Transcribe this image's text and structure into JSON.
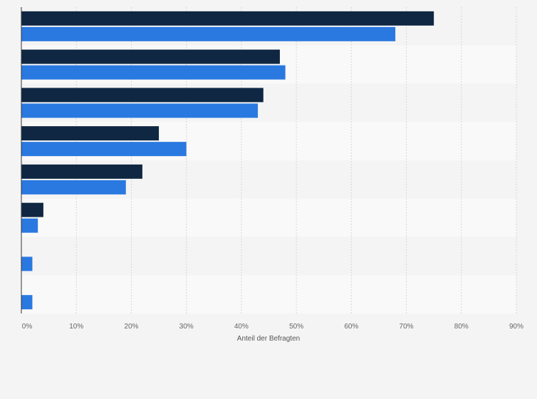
{
  "chart_data": {
    "type": "bar",
    "orientation": "horizontal",
    "categories": [
      "",
      "",
      "",
      "",
      "",
      "",
      "",
      ""
    ],
    "series": [
      {
        "values": [
          75,
          47,
          44,
          25,
          22,
          4,
          0,
          0
        ],
        "color": "#0f2742"
      },
      {
        "values": [
          68,
          48,
          43,
          30,
          19,
          3,
          2,
          2
        ],
        "color": "#2a79e0"
      }
    ],
    "xlim": [
      0,
      90
    ],
    "x_ticks": [
      0,
      10,
      20,
      30,
      40,
      50,
      60,
      70,
      80,
      90
    ],
    "x_tick_labels": [
      "0%",
      "10%",
      "20%",
      "30%",
      "40%",
      "50%",
      "60%",
      "70%",
      "80%",
      "90%"
    ],
    "xlabel": "Anteil der Befragten",
    "grid": true
  }
}
